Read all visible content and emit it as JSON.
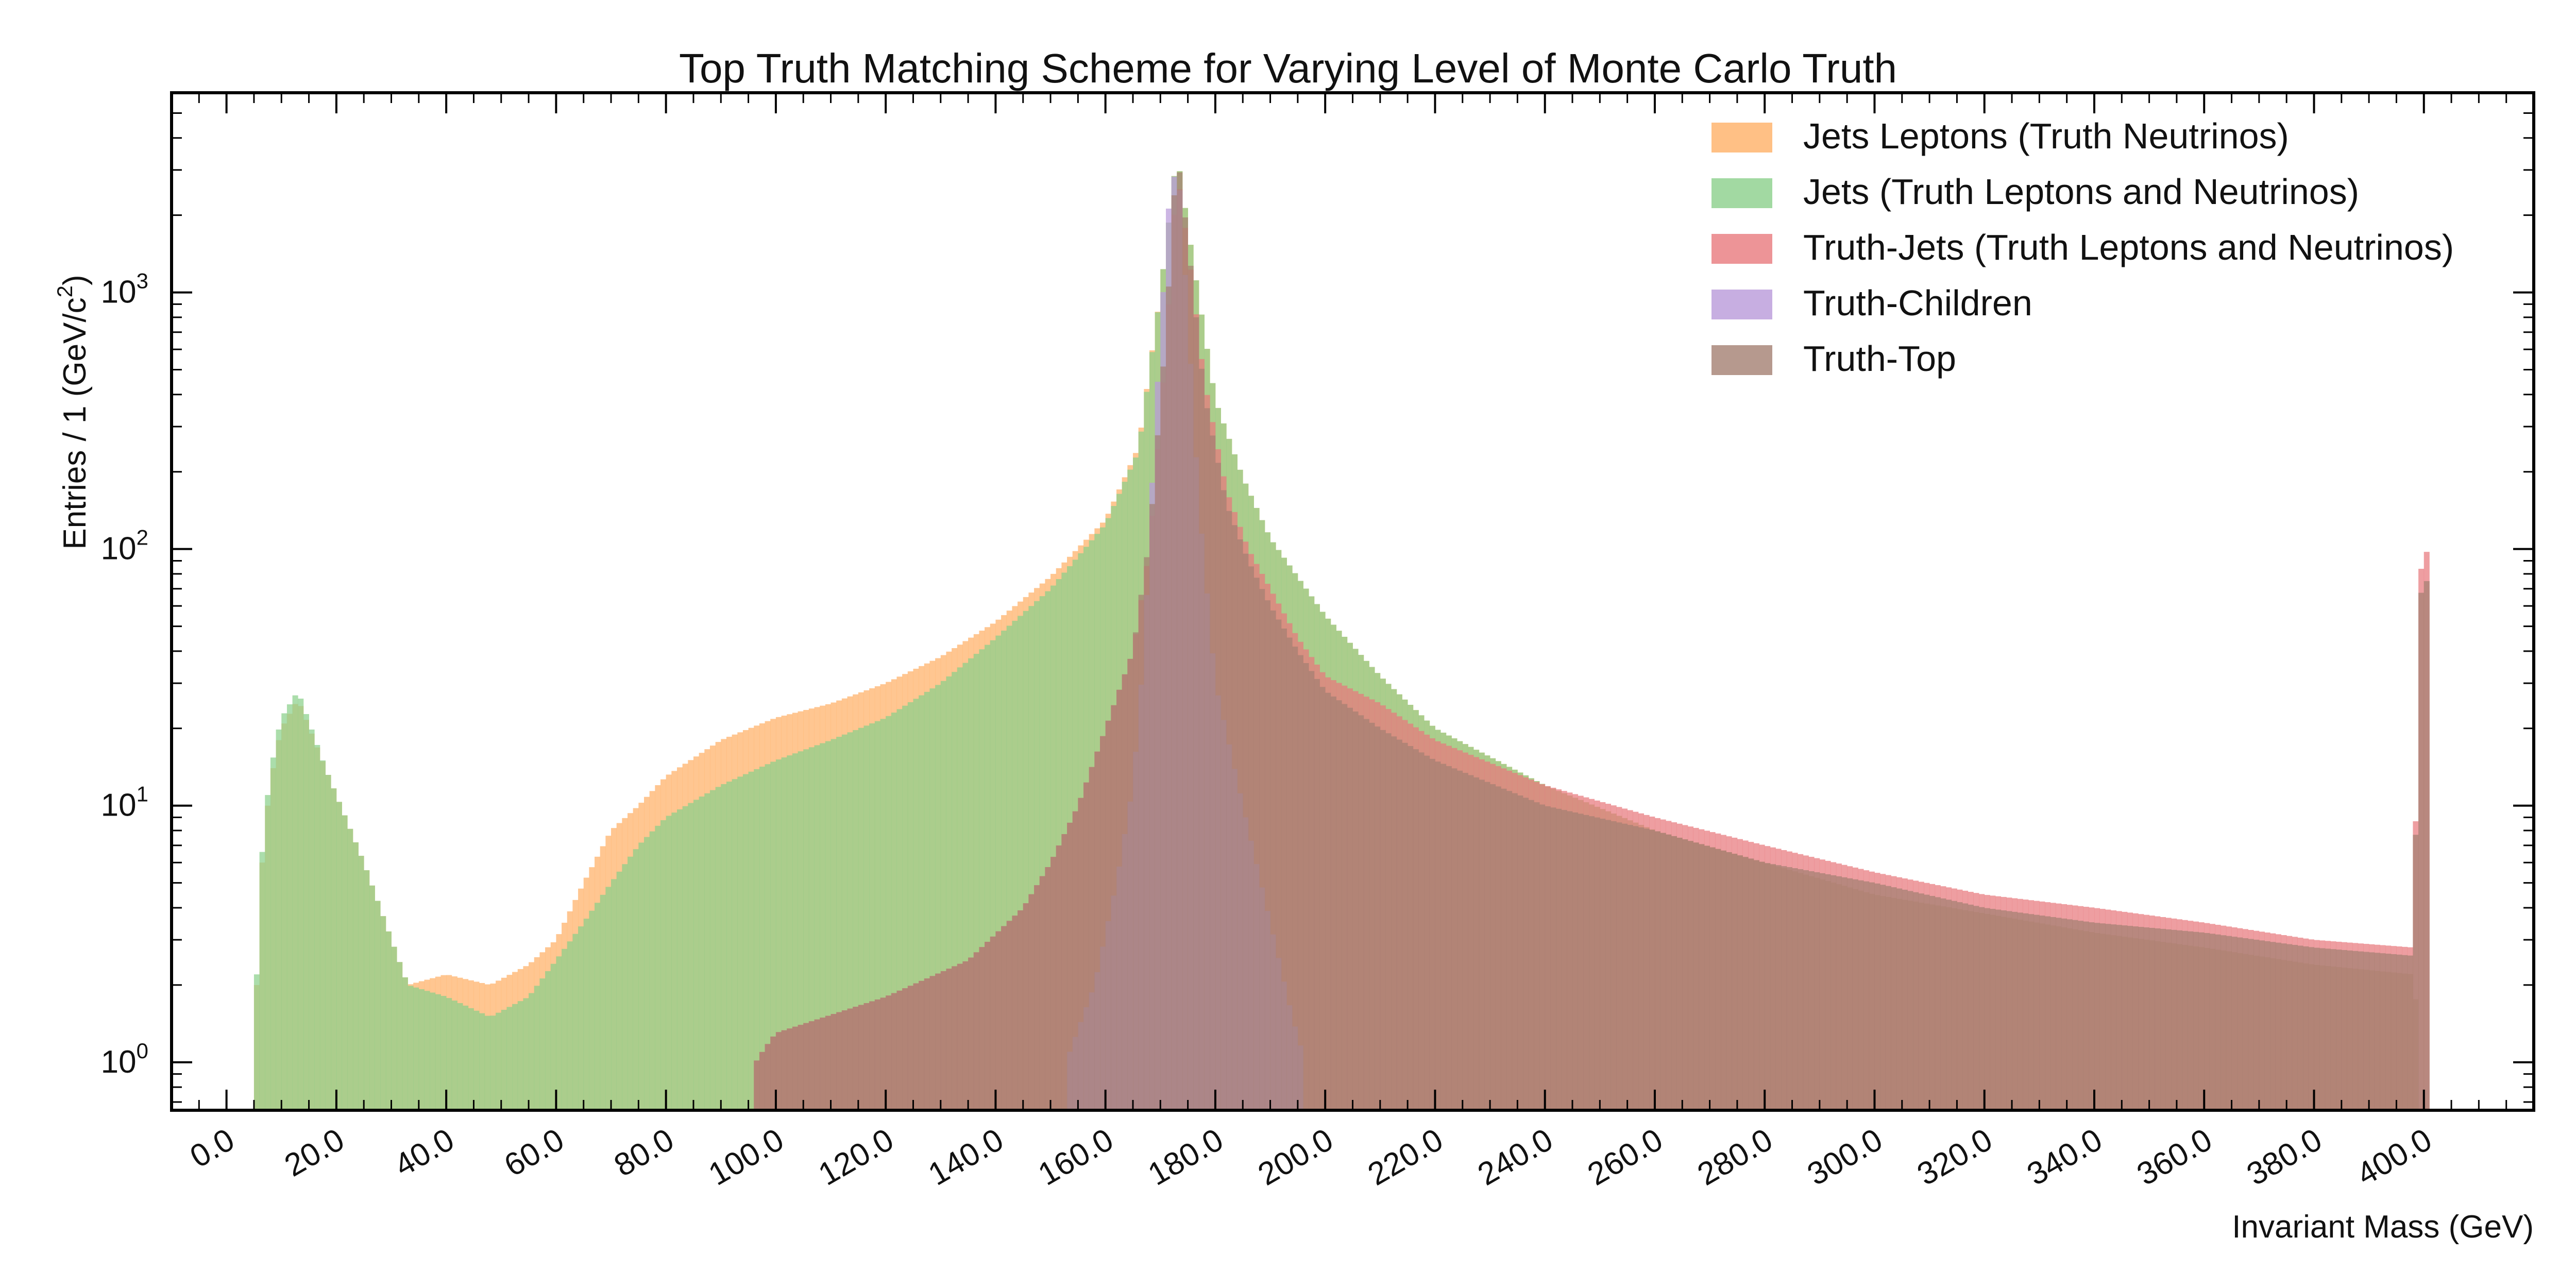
{
  "chart_data": {
    "type": "histogram",
    "title": "Top Truth Matching Scheme for Varying Level of Monte Carlo Truth",
    "xlabel": "Invariant Mass (GeV)",
    "ylabel": "Entries  / 1 (GeV/c",
    "ylabel_sup": "2",
    "ylabel_close": ")",
    "xlim": [
      -10,
      420
    ],
    "ylim": [
      0.65,
      6000
    ],
    "yscale": "log",
    "x_ticks": [
      0,
      20,
      40,
      60,
      80,
      100,
      120,
      140,
      160,
      180,
      200,
      220,
      240,
      260,
      280,
      300,
      320,
      340,
      360,
      380,
      400
    ],
    "x_tick_labels": [
      "0.0",
      "20.0",
      "40.0",
      "60.0",
      "80.0",
      "100.0",
      "120.0",
      "140.0",
      "160.0",
      "180.0",
      "200.0",
      "220.0",
      "240.0",
      "260.0",
      "280.0",
      "300.0",
      "320.0",
      "340.0",
      "360.0",
      "380.0",
      "400.0"
    ],
    "y_ticks": [
      {
        "value": 1,
        "base": "10",
        "exp": "0"
      },
      {
        "value": 10,
        "base": "10",
        "exp": "1"
      },
      {
        "value": 100,
        "base": "10",
        "exp": "2"
      },
      {
        "value": 1000,
        "base": "10",
        "exp": "3"
      }
    ],
    "bin_width": 1,
    "legend_position": "top-right",
    "series": [
      {
        "name": "Jets Leptons (Truth Neutrinos)",
        "color": "#ffb066",
        "bins": [
          [
            5,
            0
          ],
          [
            10,
            20
          ],
          [
            13,
            26
          ],
          [
            18,
            14
          ],
          [
            25,
            6
          ],
          [
            33,
            2
          ],
          [
            40,
            2.2
          ],
          [
            48,
            2
          ],
          [
            55,
            2.4
          ],
          [
            60,
            3
          ],
          [
            65,
            5
          ],
          [
            70,
            8
          ],
          [
            75,
            10
          ],
          [
            80,
            13
          ],
          [
            90,
            18
          ],
          [
            100,
            22
          ],
          [
            110,
            25
          ],
          [
            120,
            30
          ],
          [
            130,
            38
          ],
          [
            140,
            52
          ],
          [
            150,
            78
          ],
          [
            160,
            130
          ],
          [
            166,
            250
          ],
          [
            170,
            1000
          ],
          [
            173,
            3500
          ],
          [
            176,
            1300
          ],
          [
            180,
            380
          ],
          [
            185,
            190
          ],
          [
            190,
            110
          ],
          [
            200,
            55
          ],
          [
            210,
            32
          ],
          [
            220,
            20
          ],
          [
            240,
            12
          ],
          [
            260,
            8
          ],
          [
            280,
            6
          ],
          [
            300,
            4.5
          ],
          [
            320,
            3.8
          ],
          [
            340,
            3.2
          ],
          [
            360,
            2.8
          ],
          [
            380,
            2.4
          ],
          [
            398,
            2.2
          ],
          [
            400.5,
            0
          ],
          [
            403,
            0
          ]
        ]
      },
      {
        "name": "Jets (Truth Leptons and Neutrinos)",
        "color": "#8bd08b",
        "bins": [
          [
            5,
            0
          ],
          [
            10,
            22
          ],
          [
            13,
            28
          ],
          [
            18,
            14
          ],
          [
            25,
            6
          ],
          [
            33,
            2
          ],
          [
            40,
            1.8
          ],
          [
            48,
            1.5
          ],
          [
            55,
            1.8
          ],
          [
            60,
            2.5
          ],
          [
            65,
            3.5
          ],
          [
            70,
            5
          ],
          [
            75,
            7
          ],
          [
            80,
            9
          ],
          [
            90,
            12
          ],
          [
            100,
            15
          ],
          [
            110,
            18
          ],
          [
            120,
            22
          ],
          [
            130,
            30
          ],
          [
            140,
            45
          ],
          [
            150,
            70
          ],
          [
            160,
            125
          ],
          [
            166,
            240
          ],
          [
            170,
            1000
          ],
          [
            173,
            3500
          ],
          [
            176,
            1300
          ],
          [
            180,
            380
          ],
          [
            185,
            190
          ],
          [
            190,
            110
          ],
          [
            200,
            55
          ],
          [
            210,
            32
          ],
          [
            220,
            20
          ],
          [
            240,
            12
          ],
          [
            260,
            8
          ],
          [
            280,
            6
          ],
          [
            300,
            4.5
          ],
          [
            320,
            3.8
          ],
          [
            340,
            3.2
          ],
          [
            360,
            2.8
          ],
          [
            380,
            2.4
          ],
          [
            398,
            2.2
          ],
          [
            400.5,
            0
          ],
          [
            403,
            0
          ]
        ]
      },
      {
        "name": "Truth-Jets (Truth Leptons and Neutrinos)",
        "color": "#e8797d",
        "bins": [
          [
            84,
            0
          ],
          [
            100,
            1.3
          ],
          [
            120,
            1.8
          ],
          [
            135,
            2.5
          ],
          [
            145,
            4
          ],
          [
            150,
            6
          ],
          [
            155,
            10
          ],
          [
            160,
            20
          ],
          [
            165,
            40
          ],
          [
            168,
            100
          ],
          [
            171,
            600
          ],
          [
            173,
            3000
          ],
          [
            175,
            1500
          ],
          [
            178,
            450
          ],
          [
            182,
            170
          ],
          [
            186,
            100
          ],
          [
            190,
            70
          ],
          [
            195,
            45
          ],
          [
            200,
            32
          ],
          [
            210,
            25
          ],
          [
            220,
            18
          ],
          [
            240,
            12
          ],
          [
            260,
            9
          ],
          [
            280,
            7
          ],
          [
            300,
            5.5
          ],
          [
            320,
            4.5
          ],
          [
            340,
            4
          ],
          [
            360,
            3.5
          ],
          [
            380,
            3
          ],
          [
            398,
            2.8
          ],
          [
            400,
            260
          ],
          [
            400.8,
            0
          ],
          [
            403,
            0
          ]
        ]
      },
      {
        "name": "Truth-Children",
        "color": "#b99ad9",
        "bins": [
          [
            150,
            0
          ],
          [
            152,
            0.9
          ],
          [
            158,
            2
          ],
          [
            162,
            5
          ],
          [
            165,
            12
          ],
          [
            167,
            40
          ],
          [
            169,
            300
          ],
          [
            171,
            1500
          ],
          [
            172,
            3000
          ],
          [
            173.5,
            2500
          ],
          [
            175,
            800
          ],
          [
            177,
            150
          ],
          [
            180,
            30
          ],
          [
            185,
            10
          ],
          [
            190,
            3.5
          ],
          [
            194,
            1.5
          ],
          [
            197,
            0.9
          ],
          [
            198.5,
            0
          ],
          [
            210,
            0
          ]
        ]
      },
      {
        "name": "Truth-Top",
        "color": "#a47f72",
        "bins": [
          [
            84,
            0
          ],
          [
            100,
            1.3
          ],
          [
            120,
            1.8
          ],
          [
            135,
            2.5
          ],
          [
            145,
            4
          ],
          [
            150,
            6
          ],
          [
            155,
            10
          ],
          [
            160,
            20
          ],
          [
            165,
            40
          ],
          [
            168,
            110
          ],
          [
            171,
            700
          ],
          [
            173,
            3600
          ],
          [
            175,
            1600
          ],
          [
            178,
            400
          ],
          [
            182,
            150
          ],
          [
            186,
            90
          ],
          [
            190,
            60
          ],
          [
            195,
            40
          ],
          [
            200,
            28
          ],
          [
            210,
            20
          ],
          [
            220,
            15
          ],
          [
            240,
            10
          ],
          [
            260,
            8
          ],
          [
            280,
            6
          ],
          [
            300,
            5
          ],
          [
            320,
            4
          ],
          [
            340,
            3.5
          ],
          [
            360,
            3.2
          ],
          [
            380,
            2.8
          ],
          [
            398,
            2.6
          ],
          [
            400,
            200
          ],
          [
            400.8,
            0
          ],
          [
            403,
            0
          ]
        ]
      }
    ]
  }
}
